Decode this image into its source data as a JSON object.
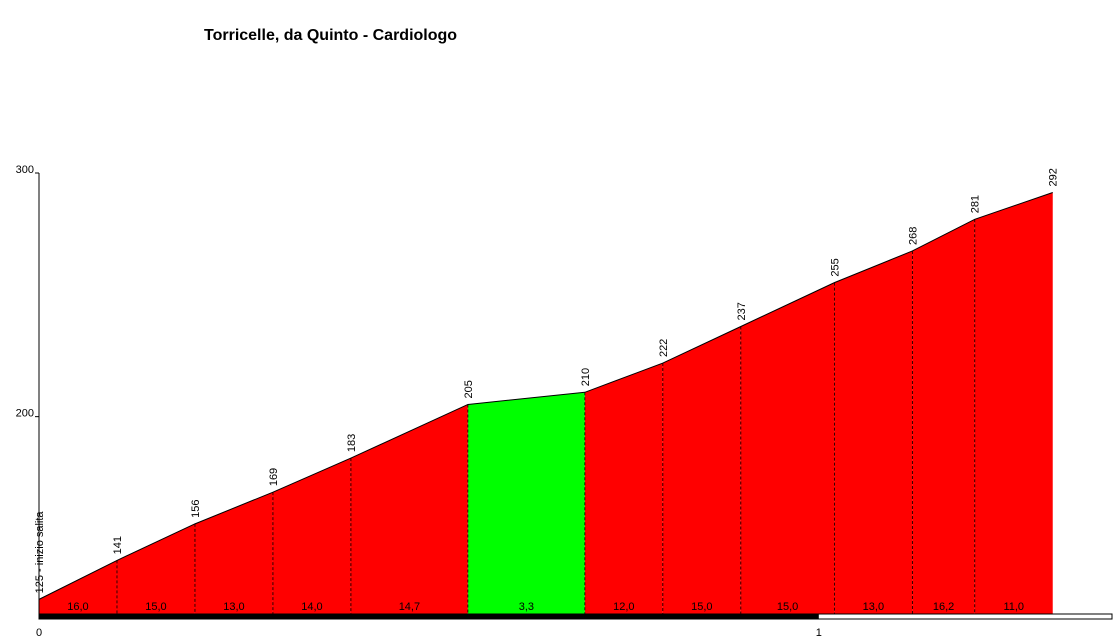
{
  "chart_data": {
    "type": "elevation-profile",
    "title": "Torricelle, da Quinto - Cardiologo",
    "x": [
      0,
      0.1,
      0.2,
      0.3,
      0.4,
      0.55,
      0.7,
      0.8,
      0.9,
      1.02,
      1.12,
      1.2,
      1.3
    ],
    "values": [
      125,
      141,
      156,
      169,
      183,
      205,
      210,
      222,
      237,
      255,
      268,
      281,
      292
    ],
    "value_labels": [
      "125 - inizio salita",
      "141",
      "156",
      "169",
      "183",
      "205",
      "210",
      "222",
      "237",
      "255",
      "268",
      "281",
      "292"
    ],
    "segments": {
      "values": [
        16.0,
        15.0,
        13.0,
        14.0,
        14.7,
        3.3,
        12.0,
        15.0,
        15.0,
        13.0,
        16.2,
        11.0
      ],
      "value_labels": [
        "16,0",
        "15,0",
        "13,0",
        "14,0",
        "14,7",
        "3,3",
        "12,0",
        "15,0",
        "15,0",
        "13,0",
        "16,2",
        "11,0"
      ],
      "colors": [
        "#ff0000",
        "#ff0000",
        "#ff0000",
        "#ff0000",
        "#ff0000",
        "#00ff00",
        "#ff0000",
        "#ff0000",
        "#ff0000",
        "#ff0000",
        "#ff0000",
        "#ff0000"
      ]
    },
    "xlim": [
      0,
      1.376
    ],
    "xticks": [
      0,
      1
    ],
    "ylim": [
      119,
      300
    ],
    "yticks": [
      200,
      300
    ]
  }
}
